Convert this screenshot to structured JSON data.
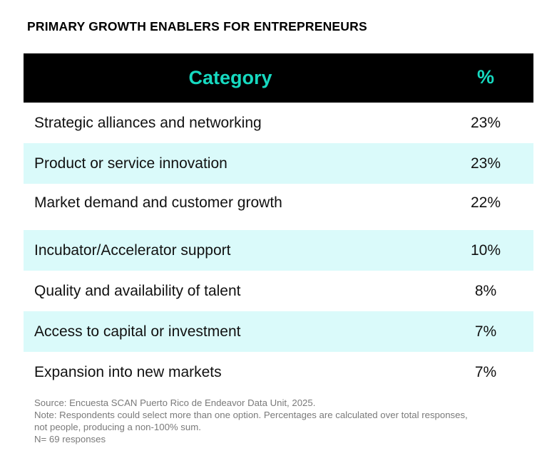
{
  "title": "PRIMARY GROWTH ENABLERS FOR ENTREPRENEURS",
  "colors": {
    "header_bg": "#000000",
    "header_text": "#16d9c0",
    "alt_row": "#dafafa"
  },
  "chart_data": {
    "type": "table",
    "title": "PRIMARY GROWTH ENABLERS FOR ENTREPRENEURS",
    "columns": [
      "Category",
      "%"
    ],
    "rows": [
      {
        "category": "Strategic alliances and networking",
        "value": "23%"
      },
      {
        "category": "Product or service innovation",
        "value": "23%"
      },
      {
        "category": "Market demand and customer growth",
        "value": "22%"
      },
      {
        "category": "Incubator/Accelerator support",
        "value": "10%"
      },
      {
        "category": "Quality and availability of talent",
        "value": "8%"
      },
      {
        "category": "Access to capital or investment",
        "value": "7%"
      },
      {
        "category": "Expansion into new markets",
        "value": "7%"
      }
    ],
    "values": [
      23,
      23,
      22,
      10,
      8,
      7,
      7
    ],
    "categories": [
      "Strategic alliances and networking",
      "Product or service innovation",
      "Market demand and customer growth",
      "Incubator/Accelerator support",
      "Quality and availability of talent",
      "Access to capital or investment",
      "Expansion into new markets"
    ]
  },
  "notes": {
    "source": "Source: Encuesta SCAN Puerto Rico de Endeavor Data Unit, 2025.",
    "note": "Note: Respondents could select more than one option. Percentages are calculated over total responses, not people, producing a non-100% sum.",
    "n": "N= 69 responses"
  }
}
